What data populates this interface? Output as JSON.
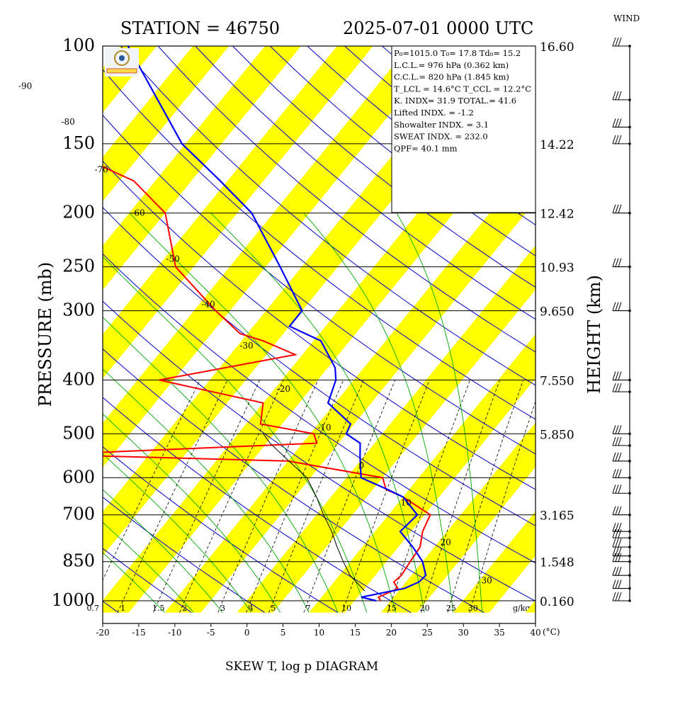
{
  "header": {
    "station": "STATION = 46750",
    "datetime": "2025-07-01 0000 UTC",
    "wind_label": "WIND",
    "footer": "SKEW T, log p DIAGRAM"
  },
  "colors": {
    "band": "#ffff00",
    "temperature": "#ff0000",
    "dewpoint": "#0000ff",
    "dry_adiabat": "#0000c8",
    "mixing_ratio": "#00aa00",
    "isobar": "#000000",
    "parcel": "#000000"
  },
  "info_box": [
    "P₀=1015.0  T₀= 17.8  Td₀= 15.2",
    "L.C.L.= 976 hPa (0.362 km)",
    "C.C.L.= 820 hPa (1.845 km)",
    "T_LCL = 14.6°C  T_CCL = 12.2°C",
    "K. INDX= 31.9   TOTAL.= 41.6",
    "Lifted INDX. =  -1.2",
    "Showalter INDX. =     3.1",
    "SWEAT INDX. =   232.0",
    "QPF= 40.1 mm"
  ],
  "chart_data": {
    "type": "line",
    "diagram": "skew-T log-p",
    "xlabel": "",
    "ylabel": "PRESSURE (mb)",
    "y2label": "HEIGHT (km)",
    "x_unit": "(°C)",
    "xlim": [
      -20,
      40
    ],
    "ylim": [
      1050,
      100
    ],
    "y_scale": "log",
    "x_ticks": [
      -20,
      -15,
      -10,
      -5,
      0,
      5,
      10,
      15,
      20,
      25,
      30,
      35,
      40
    ],
    "pressure_ticks": [
      {
        "p": 100,
        "label": "100",
        "height": "16.60"
      },
      {
        "p": 150,
        "label": "150",
        "height": "14.22"
      },
      {
        "p": 200,
        "label": "200",
        "height": "12.42"
      },
      {
        "p": 250,
        "label": "250",
        "height": "10.93"
      },
      {
        "p": 300,
        "label": "300",
        "height": "9.650"
      },
      {
        "p": 400,
        "label": "400",
        "height": "7.550"
      },
      {
        "p": 500,
        "label": "500",
        "height": "5.850"
      },
      {
        "p": 600,
        "label": "600",
        "height": ""
      },
      {
        "p": 700,
        "label": "700",
        "height": "3.165"
      },
      {
        "p": 850,
        "label": "850",
        "height": "1.548"
      },
      {
        "p": 1000,
        "label": "1000",
        "height": "0.160"
      }
    ],
    "isotherm_labels": [
      {
        "t": -90,
        "p": 118,
        "label": "-90"
      },
      {
        "t": -80,
        "p": 137,
        "label": "-80"
      },
      {
        "t": -70,
        "p": 167,
        "label": "-70"
      },
      {
        "t": -60,
        "p": 200,
        "label": "-60"
      },
      {
        "t": -50,
        "p": 242,
        "label": "-50"
      },
      {
        "t": -40,
        "p": 292,
        "label": "-40"
      },
      {
        "t": -30,
        "p": 347,
        "label": "-30"
      },
      {
        "t": -20,
        "p": 415,
        "label": "-20"
      },
      {
        "t": -10,
        "p": 487,
        "label": "-10"
      },
      {
        "t": 0,
        "p": 570,
        "label": "0"
      },
      {
        "t": 10,
        "p": 665,
        "label": "10"
      },
      {
        "t": 20,
        "p": 785,
        "label": "20"
      },
      {
        "t": 30,
        "p": 920,
        "label": "30"
      }
    ],
    "mixing_ratio_labels": [
      {
        "w": 0.7,
        "label": "0.7"
      },
      {
        "w": 1,
        "label": "1"
      },
      {
        "w": 1.5,
        "label": "1.5"
      },
      {
        "w": 2,
        "label": "2"
      },
      {
        "w": 3,
        "label": "3"
      },
      {
        "w": 4,
        "label": "4"
      },
      {
        "w": 5,
        "label": "5"
      },
      {
        "w": 7,
        "label": "7"
      },
      {
        "w": 10,
        "label": "10"
      },
      {
        "w": 15,
        "label": "15"
      },
      {
        "w": 20,
        "label": "20"
      },
      {
        "w": 25,
        "label": "25"
      },
      {
        "w": 30,
        "label": "30"
      }
    ],
    "mixing_ratio_unit": "g/kg",
    "series": [
      {
        "name": "temperature",
        "points": [
          [
            1000,
            18.6
          ],
          [
            985,
            17.9
          ],
          [
            950,
            19.6
          ],
          [
            925,
            18.3
          ],
          [
            900,
            18.6
          ],
          [
            850,
            18.3
          ],
          [
            800,
            18.0
          ],
          [
            750,
            16.6
          ],
          [
            700,
            15.8
          ],
          [
            650,
            10.0
          ],
          [
            630,
            6.8
          ],
          [
            600,
            5.0
          ],
          [
            560,
            -10.0
          ],
          [
            545,
            -44.0
          ],
          [
            520,
            -8.0
          ],
          [
            500,
            -9.5
          ],
          [
            480,
            -18.0
          ],
          [
            440,
            -20.0
          ],
          [
            400,
            -37.0
          ],
          [
            360,
            -21.0
          ],
          [
            340,
            -27.0
          ],
          [
            330,
            -31.0
          ],
          [
            300,
            -37.0
          ],
          [
            250,
            -47.5
          ],
          [
            200,
            -55.0
          ],
          [
            175,
            -63.0
          ],
          [
            160,
            -72.0
          ],
          [
            150,
            -77.0
          ],
          [
            100,
            -88.5
          ]
        ]
      },
      {
        "name": "dewpoint",
        "points": [
          [
            1000,
            18.0
          ],
          [
            985,
            15.5
          ],
          [
            950,
            20.5
          ],
          [
            925,
            21.8
          ],
          [
            900,
            22.0
          ],
          [
            850,
            20.0
          ],
          [
            800,
            17.0
          ],
          [
            750,
            13.5
          ],
          [
            700,
            14.0
          ],
          [
            650,
            10.0
          ],
          [
            630,
            7.0
          ],
          [
            600,
            2.0
          ],
          [
            550,
            -0.5
          ],
          [
            520,
            -2.0
          ],
          [
            500,
            -5.0
          ],
          [
            480,
            -5.5
          ],
          [
            440,
            -11.0
          ],
          [
            400,
            -12.5
          ],
          [
            380,
            -14.0
          ],
          [
            340,
            -19.0
          ],
          [
            320,
            -25.0
          ],
          [
            300,
            -25.0
          ],
          [
            250,
            -33.0
          ],
          [
            200,
            -43.0
          ],
          [
            175,
            -51.0
          ],
          [
            150,
            -60.5
          ],
          [
            100,
            -79.0
          ]
        ]
      },
      {
        "name": "parcel",
        "points": [
          [
            960,
            15.3
          ],
          [
            900,
            11.5
          ],
          [
            850,
            9.0
          ],
          [
            800,
            6.5
          ],
          [
            750,
            4.0
          ],
          [
            700,
            1.0
          ],
          [
            650,
            -2.0
          ],
          [
            600,
            -5.5
          ],
          [
            550,
            -11.0
          ],
          [
            520,
            -14.5
          ],
          [
            500,
            -16.5
          ]
        ]
      }
    ],
    "wind_barb_pressures": [
      100,
      125,
      140,
      150,
      200,
      250,
      300,
      400,
      420,
      500,
      525,
      560,
      600,
      640,
      700,
      750,
      770,
      800,
      830,
      850,
      900,
      950,
      1000
    ]
  }
}
